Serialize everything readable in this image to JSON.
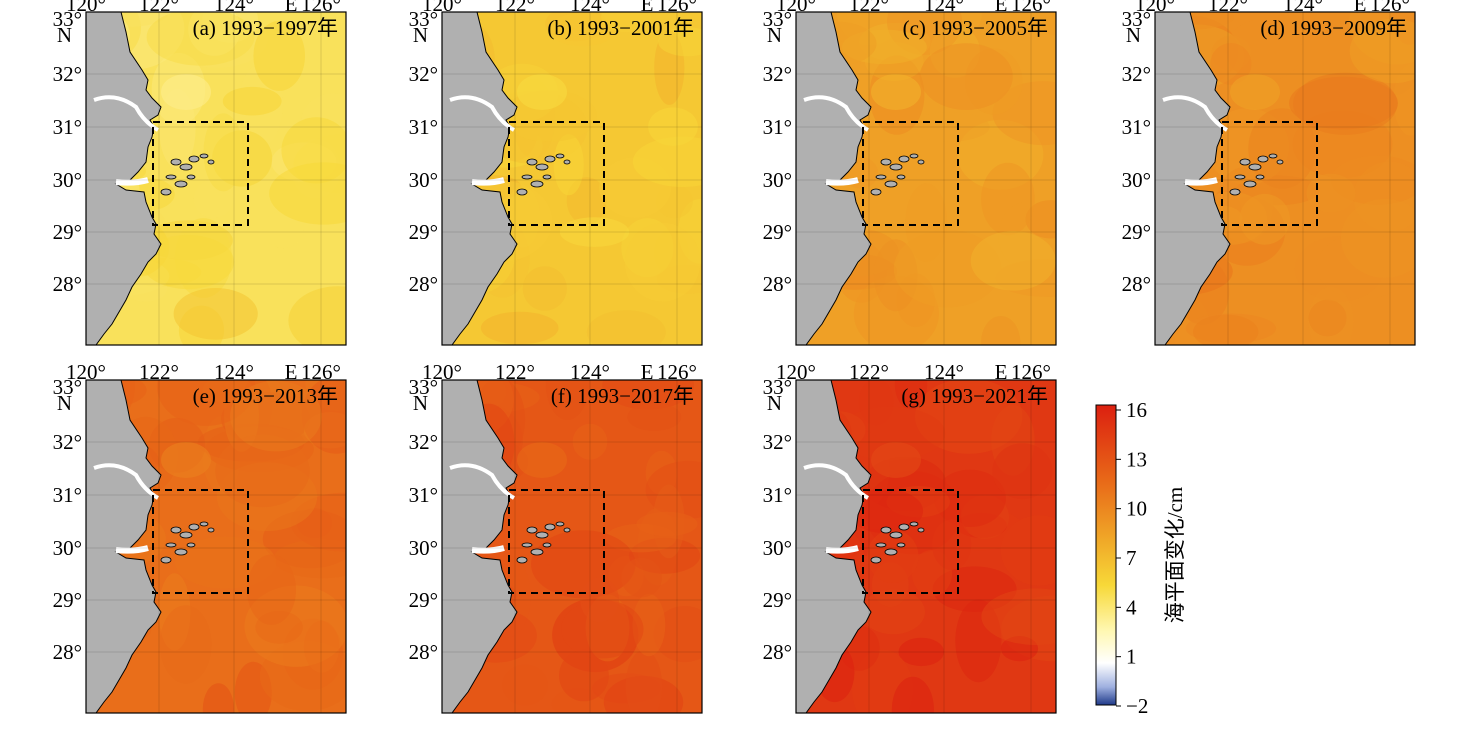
{
  "axes": {
    "lon_labels": [
      "120°",
      "122°",
      "124°",
      "126°"
    ],
    "lon_hemisphere": "E",
    "lat_labels": [
      "33°",
      "32°",
      "31°",
      "30°",
      "29°",
      "28°"
    ],
    "lat_hemisphere": "N"
  },
  "panels": [
    {
      "id": "a",
      "label": "(a) 1993−1997年",
      "level": 0.2
    },
    {
      "id": "b",
      "label": "(b) 1993−2001年",
      "level": 0.32
    },
    {
      "id": "c",
      "label": "(c) 1993−2005年",
      "level": 0.48
    },
    {
      "id": "d",
      "label": "(d) 1993−2009年",
      "level": 0.55
    },
    {
      "id": "e",
      "label": "(e) 1993−2013年",
      "level": 0.68
    },
    {
      "id": "f",
      "label": "(f) 1993−2017年",
      "level": 0.78
    },
    {
      "id": "g",
      "label": "(g) 1993−2021年",
      "level": 0.92
    }
  ],
  "colorbar": {
    "title": "海平面变化/cm",
    "ticks": [
      "16",
      "13",
      "10",
      "7",
      "4",
      "1",
      "−2"
    ],
    "colors": [
      "#1f3a8a",
      "#9fb0e0",
      "#ffffff",
      "#fff7b0",
      "#f7d838",
      "#f0a828",
      "#e86818",
      "#dc2010"
    ]
  },
  "colors": {
    "land": "#b0b0b0",
    "coastline": "#000000",
    "study_box": "#000000"
  }
}
